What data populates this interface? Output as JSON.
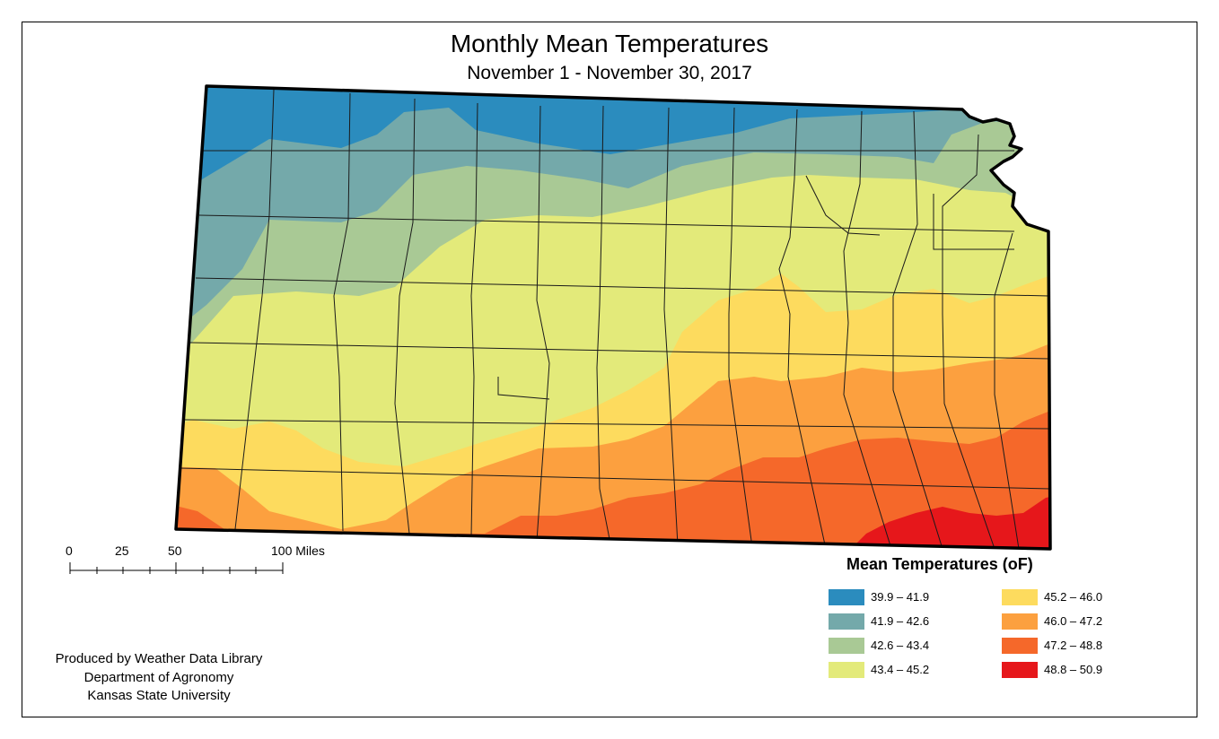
{
  "title": "Monthly Mean Temperatures",
  "subtitle": "November 1 - November 30, 2017",
  "scale_bar": {
    "labels": [
      "0",
      "25",
      "50",
      "100 Miles"
    ]
  },
  "legend": {
    "title": "Mean Temperatures (oF)",
    "items": [
      {
        "label": "39.9 – 41.9",
        "color": "#2b8cbe"
      },
      {
        "label": "41.9 – 42.6",
        "color": "#74a9aa"
      },
      {
        "label": "42.6 – 43.4",
        "color": "#a9c995"
      },
      {
        "label": "43.4 – 45.2",
        "color": "#e3ea7a"
      },
      {
        "label": "45.2 – 46.0",
        "color": "#fddb5e"
      },
      {
        "label": "46.0 – 47.2",
        "color": "#fca03f"
      },
      {
        "label": "47.2 – 48.8",
        "color": "#f5682a"
      },
      {
        "label": "48.8 – 50.9",
        "color": "#e6171b"
      }
    ]
  },
  "credits": [
    "Produced by Weather Data Library",
    "Department of Agronomy",
    "Kansas State University"
  ]
}
